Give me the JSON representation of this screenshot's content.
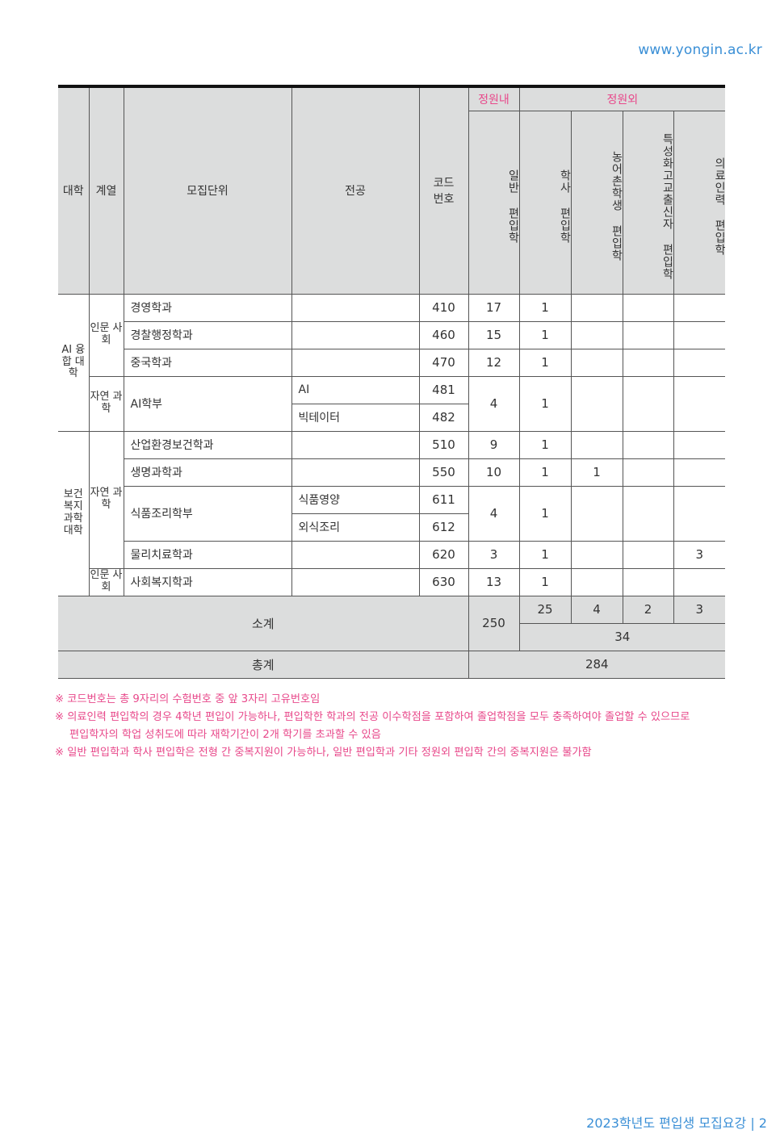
{
  "header": {
    "url": "www.yongin.ac.kr"
  },
  "table": {
    "columns": {
      "college": "대학",
      "series": "계열",
      "unit": "모집단위",
      "major": "전공",
      "code": "코드 번호",
      "group_in": "정원내",
      "group_out": "정원외",
      "general": "일반 편입학",
      "bachelor": "학사 편입학",
      "rural": "농어촌학생 편입학",
      "vocational": "특성화고교출신자 편입학",
      "medical": "의료인력 편입학"
    },
    "colleges": [
      "AI 융합 대학",
      "보건 복지 과학 대학"
    ],
    "series": [
      "인문 사회",
      "자연 과학",
      "자연 과학",
      "인문 사회"
    ],
    "rows": [
      {
        "unit": "경영학과",
        "major": "",
        "code": "410",
        "general": "17",
        "bachelor": "1",
        "rural": "",
        "vocational": "",
        "medical": ""
      },
      {
        "unit": "경찰행정학과",
        "major": "",
        "code": "460",
        "general": "15",
        "bachelor": "1",
        "rural": "",
        "vocational": "",
        "medical": ""
      },
      {
        "unit": "중국학과",
        "major": "",
        "code": "470",
        "general": "12",
        "bachelor": "1",
        "rural": "",
        "vocational": "",
        "medical": ""
      },
      {
        "unit": "AI학부",
        "major": "AI",
        "code": "481",
        "general": "4",
        "bachelor": "1",
        "rural": "",
        "vocational": "",
        "medical": ""
      },
      {
        "unit": "",
        "major": "빅테이터",
        "code": "482"
      },
      {
        "unit": "산업환경보건학과",
        "major": "",
        "code": "510",
        "general": "9",
        "bachelor": "1",
        "rural": "",
        "vocational": "",
        "medical": ""
      },
      {
        "unit": "생명과학과",
        "major": "",
        "code": "550",
        "general": "10",
        "bachelor": "1",
        "rural": "1",
        "vocational": "",
        "medical": ""
      },
      {
        "unit": "식품조리학부",
        "major": "식품영양",
        "code": "611",
        "general": "4",
        "bachelor": "1",
        "rural": "",
        "vocational": "",
        "medical": ""
      },
      {
        "unit": "",
        "major": "외식조리",
        "code": "612"
      },
      {
        "unit": "물리치료학과",
        "major": "",
        "code": "620",
        "general": "3",
        "bachelor": "1",
        "rural": "",
        "vocational": "",
        "medical": "3"
      },
      {
        "unit": "사회복지학과",
        "major": "",
        "code": "630",
        "general": "13",
        "bachelor": "1",
        "rural": "",
        "vocational": "",
        "medical": ""
      }
    ],
    "subtotal": {
      "label": "소계",
      "general": "250",
      "bachelor": "25",
      "rural": "4",
      "vocational": "2",
      "medical": "3",
      "out_total": "34"
    },
    "total": {
      "label": "총계",
      "value": "284"
    }
  },
  "notes": [
    "※ 코드번호는 총 9자리의 수험번호 중 앞 3자리 고유번호임",
    "※ 의료인력 편입학의 경우 4학년 편입이 가능하나, 편입학한 학과의 전공 이수학점을 포함하여 졸업학점을 모두 충족하여야 졸업할 수 있으므로",
    "편입학자의 학업 성취도에 따라 재학기간이 2개 학기를 초과할 수 있음",
    "※ 일반 편입학과 학사 편입학은 전형 간 중복지원이 가능하나, 일반 편입학과 기타 정원외 편입학 간의 중복지원은 불가함"
  ],
  "colors": {
    "accent_pink": "#e8488a",
    "accent_blue": "#3a8fd6",
    "header_bg": "#dcdddd"
  },
  "footer": {
    "text": "2023학년도 편입생 모집요강 | 2"
  }
}
